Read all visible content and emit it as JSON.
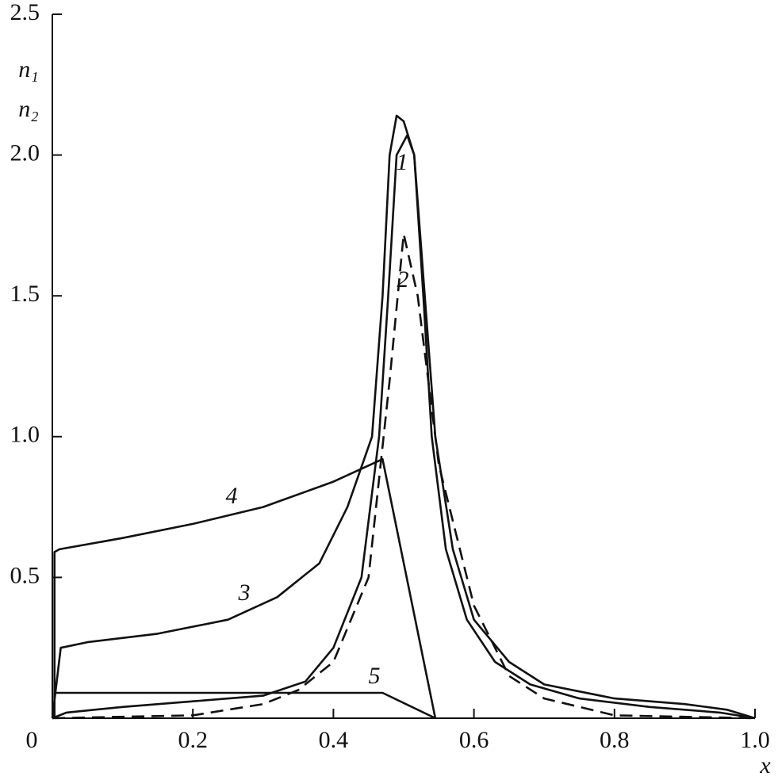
{
  "chart_data": {
    "type": "line",
    "x_label": "x",
    "y_labels": [
      "n₁",
      "n₂"
    ],
    "xlim": [
      0,
      1
    ],
    "ylim": [
      0,
      2.5
    ],
    "xticks": [
      0,
      0.2,
      0.4,
      0.6,
      0.8,
      {
        "value": 1,
        "label": "1.0"
      }
    ],
    "yticks": [
      0.5,
      {
        "value": 1,
        "label": "1.0"
      },
      1.5,
      {
        "value": 2,
        "label": "2.0"
      },
      2.5
    ],
    "series": [
      {
        "name": "1",
        "color": "#111",
        "dashed": false,
        "x": [
          0,
          0.02,
          0.1,
          0.2,
          0.3,
          0.36,
          0.4,
          0.44,
          0.465,
          0.478,
          0.49,
          0.505,
          0.515,
          0.528,
          0.54,
          0.56,
          0.59,
          0.63,
          0.68,
          0.75,
          0.85,
          0.95,
          1
        ],
        "values": [
          0,
          0.02,
          0.04,
          0.06,
          0.08,
          0.13,
          0.25,
          0.5,
          1.0,
          1.5,
          2.0,
          2.07,
          2.0,
          1.5,
          1.0,
          0.6,
          0.35,
          0.2,
          0.12,
          0.07,
          0.04,
          0.02,
          0
        ]
      },
      {
        "name": "2",
        "color": "#111",
        "dashed": true,
        "x": [
          0,
          0.2,
          0.3,
          0.35,
          0.4,
          0.45,
          0.48,
          0.5,
          0.52,
          0.55,
          0.6,
          0.65,
          0.7,
          0.8,
          1
        ],
        "values": [
          0,
          0.01,
          0.05,
          0.1,
          0.2,
          0.5,
          1.2,
          1.72,
          1.5,
          0.9,
          0.4,
          0.15,
          0.07,
          0.01,
          0
        ]
      },
      {
        "name": "3",
        "color": "#111",
        "dashed": false,
        "x": [
          0,
          0.012,
          0.05,
          0.15,
          0.25,
          0.32,
          0.38,
          0.42,
          0.455,
          0.47,
          0.48,
          0.49,
          0.5,
          0.515,
          0.53,
          0.545,
          0.57,
          0.6,
          0.65,
          0.7,
          0.8,
          0.9,
          0.96,
          1
        ],
        "values": [
          0,
          0.25,
          0.27,
          0.3,
          0.35,
          0.43,
          0.55,
          0.75,
          1.0,
          1.5,
          2.0,
          2.14,
          2.12,
          2.0,
          1.5,
          1.0,
          0.6,
          0.35,
          0.2,
          0.12,
          0.07,
          0.05,
          0.03,
          0
        ]
      },
      {
        "name": "4",
        "color": "#111",
        "dashed": false,
        "x": [
          0.003,
          0.003,
          0.01,
          0.1,
          0.2,
          0.3,
          0.4,
          0.47,
          0.545
        ],
        "values": [
          0,
          0.59,
          0.6,
          0.64,
          0.69,
          0.75,
          0.84,
          0.92,
          0
        ]
      },
      {
        "name": "5",
        "color": "#111",
        "dashed": false,
        "x": [
          0.003,
          0.003,
          0.1,
          0.3,
          0.47,
          0.545
        ],
        "values": [
          0,
          0.09,
          0.09,
          0.09,
          0.09,
          0
        ]
      }
    ]
  }
}
